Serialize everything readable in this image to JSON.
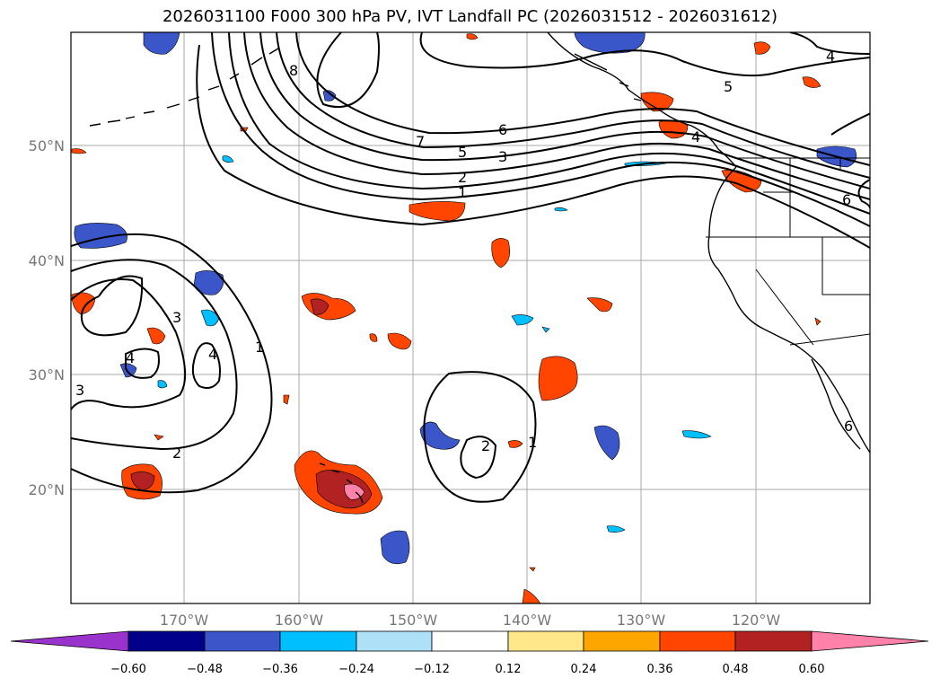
{
  "title": "2026031100 F000 300 hPa PV, IVT Landfall PC (2026031512 - 2026031612)",
  "map": {
    "lat_labels": [
      "50°N",
      "40°N",
      "30°N",
      "20°N"
    ],
    "lon_labels": [
      "170°W",
      "160°W",
      "150°W",
      "140°W",
      "130°W",
      "120°W"
    ],
    "contour_labels": [
      "8",
      "7",
      "6",
      "5",
      "5",
      "4",
      "3",
      "2",
      "1",
      "6",
      "3",
      "4",
      "4",
      "3",
      "1",
      "2",
      "2",
      "1",
      "4",
      "6"
    ]
  },
  "colorbar": {
    "ticks": [
      "−0.60",
      "−0.48",
      "−0.36",
      "−0.24",
      "−0.12",
      "0.12",
      "0.24",
      "0.36",
      "0.48",
      "0.60"
    ],
    "colors": {
      "under": "#9933cc",
      "c1": "#00008b",
      "c2": "#3a56c8",
      "c3": "#00bfff",
      "c4": "#aee1f8",
      "c5": "#ffffff",
      "c6": "#ffe78a",
      "c7": "#ffa500",
      "c8": "#ff4500",
      "c9": "#b22222",
      "c10": "#ff82ab"
    }
  }
}
